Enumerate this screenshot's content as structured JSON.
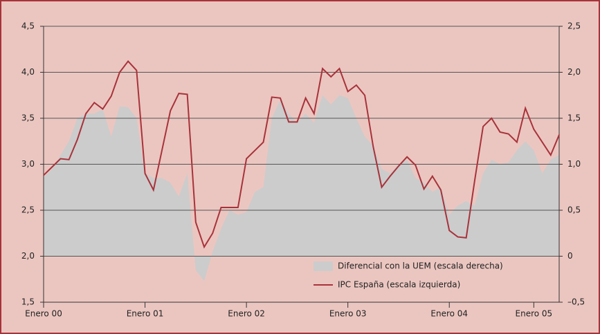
{
  "chart_data": {
    "type": "line",
    "categories": [
      "Enero 00",
      null,
      null,
      null,
      null,
      null,
      null,
      null,
      null,
      null,
      null,
      null,
      "Enero 01",
      null,
      null,
      null,
      null,
      null,
      null,
      null,
      null,
      null,
      null,
      null,
      "Enero 02",
      null,
      null,
      null,
      null,
      null,
      null,
      null,
      null,
      null,
      null,
      null,
      "Enero 03",
      null,
      null,
      null,
      null,
      null,
      null,
      null,
      null,
      null,
      null,
      null,
      "Enero 04",
      null,
      null,
      null,
      null,
      null,
      null,
      null,
      null,
      null,
      "Enero 05",
      null,
      null,
      null
    ],
    "series": [
      {
        "name": "Diferencial con la UEM (escala derecha)",
        "color": "#cccccc",
        "axis": "y2",
        "kind": "area",
        "values": [
          0.86,
          0.95,
          1.1,
          1.25,
          1.5,
          1.55,
          1.55,
          1.6,
          1.3,
          1.63,
          1.62,
          1.5,
          0.9,
          0.85,
          0.85,
          0.8,
          0.65,
          0.9,
          -0.15,
          -0.27,
          0.05,
          0.3,
          0.5,
          0.45,
          0.48,
          0.7,
          0.75,
          1.5,
          1.7,
          1.55,
          1.45,
          1.55,
          1.45,
          1.75,
          1.65,
          1.75,
          1.72,
          1.5,
          1.3,
          1.2,
          0.95,
          0.9,
          1.0,
          1.05,
          0.85,
          0.8,
          0.7,
          0.75,
          0.45,
          0.55,
          0.6,
          0.55,
          0.9,
          1.05,
          1.0,
          1.02,
          1.15,
          1.25,
          1.15,
          0.9,
          1.05,
          1.1
        ]
      },
      {
        "name": "IPC España (escala izquierda)",
        "color": "#a8323a",
        "kind": "line",
        "values": [
          2.88,
          2.97,
          3.06,
          3.05,
          3.27,
          3.55,
          3.67,
          3.6,
          3.74,
          4.0,
          4.12,
          4.02,
          2.9,
          2.72,
          3.15,
          3.58,
          3.77,
          3.76,
          2.37,
          2.1,
          2.25,
          2.53,
          2.53,
          2.53,
          3.06,
          3.15,
          3.24,
          3.73,
          3.72,
          3.46,
          3.46,
          3.72,
          3.55,
          4.04,
          3.95,
          4.04,
          3.79,
          3.86,
          3.75,
          3.19,
          2.75,
          2.87,
          2.98,
          3.08,
          2.99,
          2.73,
          2.87,
          2.72,
          2.28,
          2.21,
          2.2,
          2.82,
          3.41,
          3.5,
          3.35,
          3.33,
          3.24,
          3.61,
          3.38,
          3.24,
          3.1,
          3.32
        ]
      }
    ],
    "ylim": [
      1.5,
      4.5
    ],
    "yticks": [
      {
        "value": 1.5,
        "label": "1,5"
      },
      {
        "value": 2.0,
        "label": "2,0"
      },
      {
        "value": 2.5,
        "label": "2,5"
      },
      {
        "value": 3.0,
        "label": "3,0"
      },
      {
        "value": 3.5,
        "label": "3,5"
      },
      {
        "value": 4.0,
        "label": "4,0"
      },
      {
        "value": 4.5,
        "label": "4,5"
      }
    ],
    "y2lim": [
      -0.5,
      2.5
    ],
    "y2ticks": [
      {
        "value": -0.5,
        "label": "–0,5"
      },
      0,
      {
        "value": 0.5,
        "label": "0,5"
      },
      {
        "value": 1.0,
        "label": "1,0"
      },
      {
        "value": 1.5,
        "label": "1,5"
      },
      {
        "value": 2.0,
        "label": "2,0"
      },
      {
        "value": 2.5,
        "label": "2,5"
      }
    ],
    "grid": true,
    "legend": "lower right",
    "background": "#ebc6c0",
    "border": "#a8323a"
  }
}
